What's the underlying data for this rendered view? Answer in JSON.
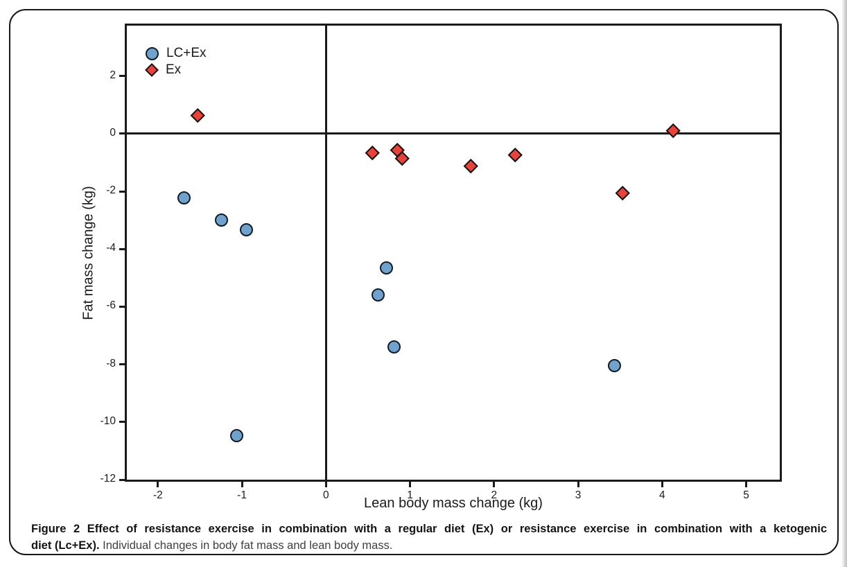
{
  "figure": {
    "caption": {
      "line1_bold": "Figure 2 Effect of resistance exercise in combination with a regular diet (Ex) or resistance exercise in combination with a ketogenic",
      "line2_bold": "diet (Lc+Ex).",
      "line2_regular": "Individual changes in body fat mass and lean body mass."
    }
  },
  "chart_data": {
    "type": "scatter",
    "title": "",
    "xlabel": "Lean body mass change (kg)",
    "ylabel": "Fat mass change (kg)",
    "xlim": [
      -2.37,
      5.4
    ],
    "ylim": [
      -12,
      3.75
    ],
    "x_ticks": [
      -2,
      -1,
      0,
      1,
      2,
      3,
      4,
      5
    ],
    "y_ticks": [
      2,
      0,
      -2,
      -4,
      -6,
      -8,
      -10,
      -12
    ],
    "grid": false,
    "zero_lines": true,
    "axis_color": "#1a1a1a",
    "legend_position": "top-left",
    "series": [
      {
        "name": "LC+Ex",
        "marker": "circle",
        "fill": "#6FA3CE",
        "stroke": "#151b24",
        "points": [
          [
            -1.69,
            -2.23
          ],
          [
            -1.24,
            -3.0
          ],
          [
            -0.95,
            -3.32
          ],
          [
            -1.06,
            -10.48
          ],
          [
            0.62,
            -5.58
          ],
          [
            0.72,
            -4.66
          ],
          [
            0.81,
            -7.39
          ],
          [
            3.43,
            -8.05
          ]
        ]
      },
      {
        "name": "Ex",
        "marker": "diamond",
        "fill": "#E9423A",
        "stroke": "#141414",
        "points": [
          [
            -1.53,
            0.65
          ],
          [
            0.55,
            -0.65
          ],
          [
            0.85,
            -0.57
          ],
          [
            0.91,
            -0.84
          ],
          [
            1.72,
            -1.11
          ],
          [
            2.25,
            -0.73
          ],
          [
            3.53,
            -2.05
          ],
          [
            4.13,
            0.11
          ]
        ]
      }
    ]
  }
}
